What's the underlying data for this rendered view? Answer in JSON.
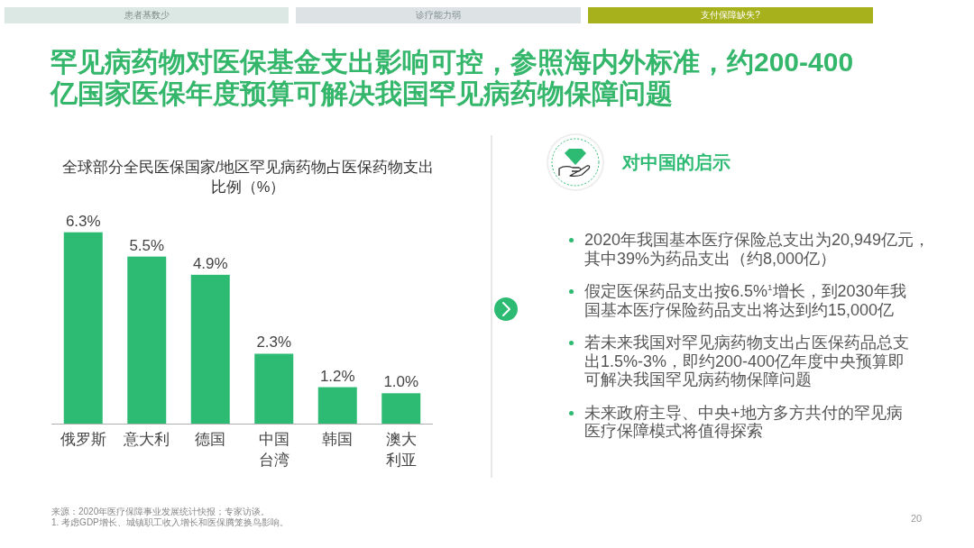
{
  "chart_data": [
    {
      "type": "other",
      "title": "罕见病药物对医保基金支出影响可控，参照海内外标准，约200-400亿国家医保年度预算可解决我国罕见病药物保障问题",
      "annotations": [
        "患者基数少",
        "诊疗能力弱",
        "支付保障缺失?",
        "来源：2020年医疗保障事业发展统计快报；专家访谈。",
        "1. 考虑GDP增长、城镇职工收入增长和医保腾笼换鸟影响。",
        "20"
      ]
    },
    {
      "type": "bar",
      "title": "全球部分全民医保国家/地区罕见病药物占医保药物支出比例（%）",
      "categories": [
        "俄罗斯",
        "意大利",
        "德国",
        "中国台湾",
        "韩国",
        "澳大利亚"
      ],
      "values": [
        6.3,
        5.5,
        4.9,
        2.3,
        1.2,
        1.0
      ],
      "value_labels": [
        "6.3%",
        "5.5%",
        "4.9%",
        "2.3%",
        "1.2%",
        "1.0%"
      ],
      "color": "#2dba72"
    },
    {
      "type": "other",
      "title": "对中国的启示",
      "annotations": [
        "2020年我国基本医疗保险总支出为20,949亿元，其中39%为药品支出（约8,000亿）",
        "假定医保药品支出按6.5%$^{1}$增长，到2030年我国基本医疗保险药品支出将达到约15,000亿",
        "若未来我国对罕见病药物支出占医保药品总支出1.5%-3%，即约200-400亿年度中央预算即可解决我国罕见病药物保障问题",
        "未来政府主导、中央+地方多方共付的罕见病医疗保障模式将值得探索"
      ]
    }
  ]
}
